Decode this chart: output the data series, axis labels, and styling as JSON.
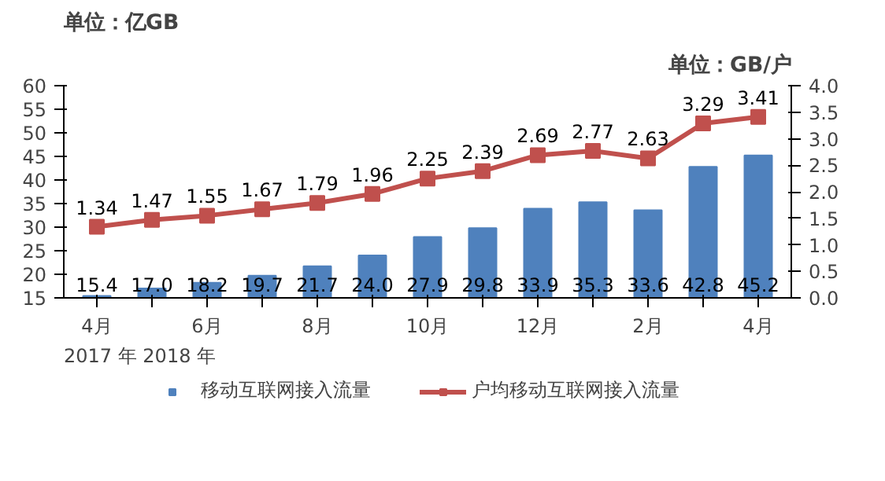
{
  "chart_data": {
    "type": "bar",
    "ylabel": "单位：亿GB",
    "y2label": "单位：GB/户",
    "categories": [
      "4月",
      null,
      "6月",
      null,
      "8月",
      null,
      "10月",
      null,
      "12月",
      null,
      "2月",
      null,
      "4月"
    ],
    "series": [
      {
        "name": "移动互联网接入流量",
        "color": "#4f81bd",
        "values": [
          15.4,
          17.0,
          18.2,
          19.7,
          21.7,
          24.0,
          27.9,
          29.8,
          33.9,
          35.3,
          33.6,
          42.8,
          45.2
        ],
        "value_labels": [
          "15.4",
          "17.0",
          "18.2",
          "19.7",
          "21.7",
          "24.0",
          "27.9",
          "29.8",
          "33.9",
          "35.3",
          "33.6",
          "42.8",
          "45.2"
        ]
      },
      {
        "name": "户均移动互联网接入流量",
        "type": "line",
        "axis": "y2",
        "color": "#c0504d",
        "marker": "square",
        "values": [
          1.34,
          1.47,
          1.55,
          1.67,
          1.79,
          1.96,
          2.25,
          2.39,
          2.69,
          2.77,
          2.63,
          3.29,
          3.41
        ]
      }
    ],
    "ylim": [
      15,
      60
    ],
    "yticks": [
      15,
      20,
      25,
      30,
      35,
      40,
      45,
      50,
      55,
      60
    ],
    "y2lim": [
      0,
      4
    ],
    "y2ticks": [
      {
        "value": 0,
        "label": "0.0"
      },
      {
        "value": 0.5,
        "label": "0.5"
      },
      {
        "value": 1,
        "label": "1.0"
      },
      {
        "value": 1.5,
        "label": "1.5"
      },
      {
        "value": 2,
        "label": "2.0"
      },
      {
        "value": 2.5,
        "label": "2.5"
      },
      {
        "value": 3,
        "label": "3.0"
      },
      {
        "value": 3.5,
        "label": "3.5"
      },
      {
        "value": 4,
        "label": "4.0"
      }
    ],
    "data_labels": true,
    "grid": false,
    "legend": "bottom",
    "annotations": [
      "2017 年  2018 年"
    ]
  }
}
